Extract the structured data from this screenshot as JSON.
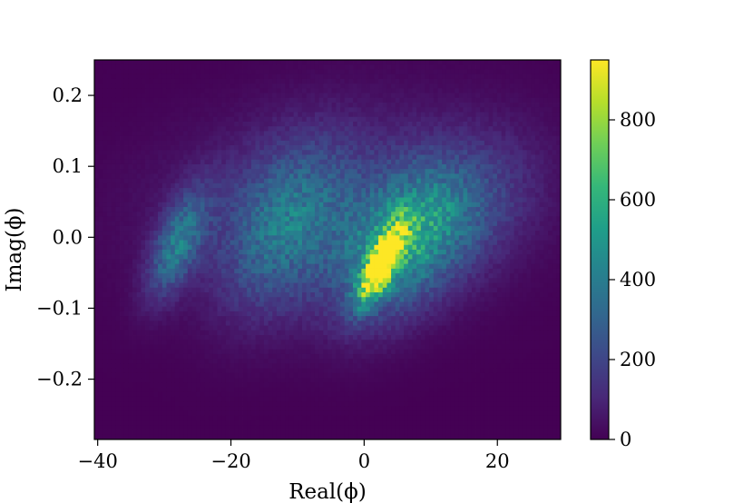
{
  "chart_data": {
    "type": "heatmap",
    "xlabel": "Real(ϕ)",
    "ylabel": "Imag(ϕ)",
    "xlim": [
      -40.5,
      29.5
    ],
    "ylim": [
      -0.285,
      0.25
    ],
    "x_ticks": [
      -40,
      -20,
      0,
      20
    ],
    "x_tick_labels": [
      "−40",
      "−20",
      "0",
      "20"
    ],
    "y_ticks": [
      0.2,
      0.1,
      0.0,
      -0.1,
      -0.2
    ],
    "y_tick_labels": [
      "0.2",
      "0.1",
      "0.0",
      "−0.1",
      "−0.2"
    ],
    "colorbar": {
      "colormap": "viridis",
      "range": [
        0,
        950
      ],
      "ticks": [
        0,
        200,
        400,
        600,
        800
      ],
      "tick_labels": [
        "0",
        "200",
        "400",
        "600",
        "800"
      ]
    },
    "bins": {
      "nx": 110,
      "ny": 80
    },
    "density_components": [
      {
        "x": 2.5,
        "y": -0.04,
        "sx": 2.2,
        "sy": 0.035,
        "rho": 0.75,
        "amp": 900
      },
      {
        "x": 5,
        "y": -0.01,
        "sx": 6,
        "sy": 0.07,
        "rho": 0.45,
        "amp": 420
      },
      {
        "x": -28,
        "y": -0.01,
        "sx": 3,
        "sy": 0.05,
        "rho": 0.6,
        "amp": 360
      },
      {
        "x": -12,
        "y": 0.01,
        "sx": 6.5,
        "sy": 0.08,
        "rho": 0.35,
        "amp": 280
      },
      {
        "x": -3,
        "y": 0.05,
        "sx": 18,
        "sy": 0.09,
        "rho": 0.15,
        "amp": 150
      },
      {
        "x": 14,
        "y": 0.02,
        "sx": 7,
        "sy": 0.07,
        "rho": 0.45,
        "amp": 180
      }
    ],
    "colors": {
      "viridis": [
        "#440154",
        "#482878",
        "#3e4989",
        "#31688e",
        "#26828e",
        "#1f9e89",
        "#35b779",
        "#6ece58",
        "#b5de2b",
        "#fde725"
      ]
    }
  }
}
